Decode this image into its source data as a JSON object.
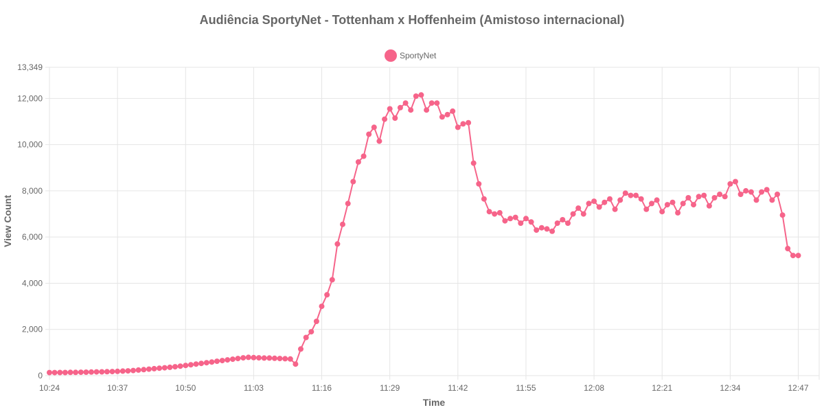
{
  "chart_data": {
    "type": "line",
    "title": "Audiência SportyNet - Tottenham x Hoffenheim (Amistoso internacional)",
    "xlabel": "Time",
    "ylabel": "View Count",
    "ylim": [
      0,
      13349
    ],
    "yticks": [
      "0",
      "2,000",
      "4,000",
      "6,000",
      "8,000",
      "10,000",
      "12,000",
      "13,349"
    ],
    "ytick_values": [
      0,
      2000,
      4000,
      6000,
      8000,
      10000,
      12000,
      13349
    ],
    "xticks": [
      "10:24",
      "10:37",
      "10:50",
      "11:03",
      "11:16",
      "11:29",
      "11:42",
      "11:55",
      "12:08",
      "12:21",
      "12:34",
      "12:47"
    ],
    "xtick_minutes": [
      0,
      13,
      26,
      39,
      52,
      65,
      78,
      91,
      104,
      117,
      130,
      143
    ],
    "x_range_minutes": [
      0,
      147
    ],
    "grid": true,
    "legend": "top",
    "color": "#f6648a",
    "series": [
      {
        "name": "SportyNet",
        "values": [
          130,
          130,
          135,
          135,
          140,
          140,
          145,
          150,
          155,
          160,
          165,
          170,
          175,
          185,
          195,
          205,
          220,
          240,
          260,
          280,
          300,
          320,
          340,
          360,
          385,
          410,
          440,
          470,
          500,
          530,
          560,
          590,
          620,
          650,
          680,
          710,
          740,
          770,
          790,
          780,
          770,
          760,
          760,
          750,
          740,
          730,
          720,
          500,
          1150,
          1650,
          1900,
          2350,
          3000,
          3500,
          4150,
          5700,
          6550,
          7450,
          8400,
          9250,
          9500,
          10450,
          10750,
          10150,
          11100,
          11550,
          11150,
          11600,
          11800,
          11500,
          12100,
          12150,
          11500,
          11800,
          11800,
          11200,
          11300,
          11450,
          10750,
          10900,
          10950,
          9200,
          8300,
          7650,
          7100,
          7000,
          7050,
          6700,
          6800,
          6850,
          6600,
          6800,
          6650,
          6300,
          6400,
          6350,
          6250,
          6600,
          6750,
          6600,
          7000,
          7250,
          7000,
          7450,
          7550,
          7300,
          7500,
          7650,
          7200,
          7600,
          7900,
          7800,
          7800,
          7650,
          7200,
          7450,
          7600,
          7100,
          7400,
          7500,
          7050,
          7450,
          7700,
          7400,
          7750,
          7800,
          7350,
          7700,
          7850,
          7750,
          8300,
          8400,
          7850,
          8000,
          7950,
          7600,
          7950,
          8050,
          7600,
          7850,
          6950,
          5500,
          5200,
          5200
        ]
      }
    ]
  }
}
